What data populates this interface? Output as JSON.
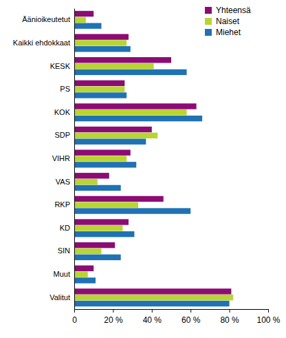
{
  "chart_data": {
    "type": "bar",
    "orientation": "horizontal",
    "categories": [
      "Äänioikeutetut",
      "Kaikki ehdokkaat",
      "KESK",
      "PS",
      "KOK",
      "SDP",
      "VIHR",
      "VAS",
      "RKP",
      "KD",
      "SIN",
      "Muut",
      "Valitut"
    ],
    "series": [
      {
        "name": "Yhteensä",
        "color": "#8c0c74",
        "values": [
          10,
          28,
          50,
          26,
          63,
          40,
          29,
          18,
          46,
          28,
          21,
          10,
          81
        ]
      },
      {
        "name": "Naiset",
        "color": "#b9d531",
        "values": [
          6,
          27,
          41,
          26,
          58,
          43,
          27,
          12,
          33,
          25,
          14,
          7,
          82
        ]
      },
      {
        "name": "Miehet",
        "color": "#1f72b4",
        "values": [
          14,
          29,
          58,
          27,
          66,
          37,
          32,
          24,
          60,
          31,
          24,
          11,
          80
        ]
      }
    ],
    "xlim": [
      0,
      100
    ],
    "xticks": [
      0,
      {
        "value": 20,
        "label": "20 %"
      },
      {
        "value": 40,
        "label": "40 %"
      },
      {
        "value": 60,
        "label": "60 %"
      },
      {
        "value": 80,
        "label": "80 %"
      },
      {
        "value": 100,
        "label": "100 %"
      }
    ],
    "grid": false,
    "legend": "top-right"
  }
}
